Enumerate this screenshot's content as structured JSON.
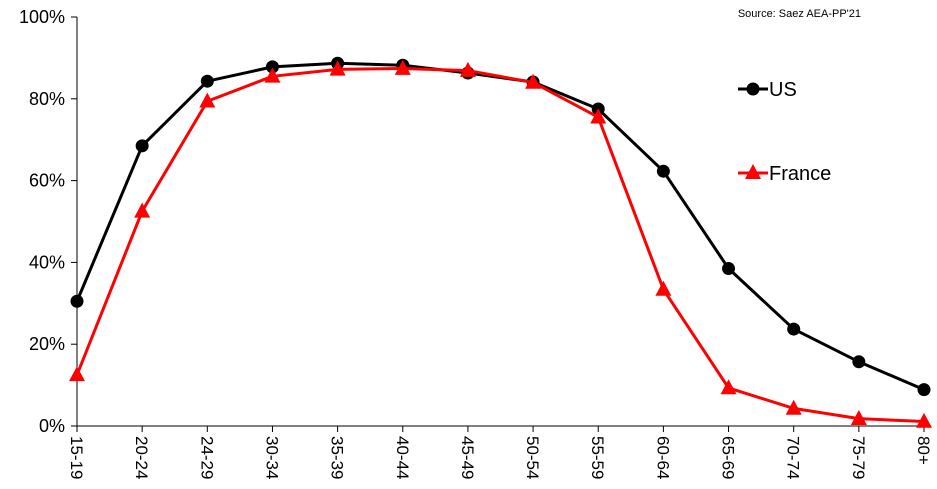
{
  "chart_data": {
    "type": "line",
    "source_note": "Source: Saez AEA-PP'21",
    "categories": [
      "15-19",
      "20-24",
      "24-29",
      "30-34",
      "35-39",
      "40-44",
      "45-49",
      "50-54",
      "55-59",
      "60-64",
      "65-69",
      "70-74",
      "75-79",
      "80+"
    ],
    "y_tick_labels": [
      "0%",
      "20%",
      "40%",
      "60%",
      "80%",
      "100%"
    ],
    "ylim": [
      0,
      100
    ],
    "grid": false,
    "legend_position": "right",
    "series": [
      {
        "name": "US",
        "marker": "circle",
        "color": "#000000",
        "values": [
          30.5,
          68.5,
          84.3,
          87.8,
          88.7,
          88.2,
          86.3,
          84.1,
          77.5,
          62.3,
          38.5,
          23.7,
          15.7,
          8.9
        ]
      },
      {
        "name": "France",
        "marker": "triangle",
        "color": "#ff0000",
        "values": [
          12.5,
          52.5,
          79.4,
          85.5,
          87.2,
          87.4,
          86.9,
          84.0,
          75.5,
          33.4,
          9.3,
          4.3,
          1.8,
          1.1
        ]
      }
    ]
  }
}
